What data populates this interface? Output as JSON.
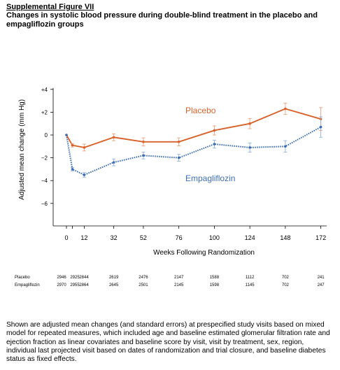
{
  "figure_label": "Supplemental Figure VII",
  "title": "Changes in systolic blood pressure during double-blind treatment in the placebo and empagliflozin groups",
  "colors": {
    "placebo": "#d9622b",
    "empagliflozin": "#3d6fb4",
    "axis": "#000000",
    "error_placebo": "#eba27d",
    "error_empa": "#8fb0dc"
  },
  "chart_data": {
    "type": "line",
    "xlabel": "Weeks Following Randomization",
    "ylabel": "Adjusted mean change (mm Hg)",
    "x": [
      0,
      4,
      12,
      32,
      52,
      76,
      100,
      124,
      148,
      172
    ],
    "x_tick_labels": [
      "0",
      "12",
      "32",
      "52",
      "76",
      "100",
      "124",
      "148",
      "172"
    ],
    "x_tick_values": [
      0,
      12,
      32,
      52,
      76,
      100,
      124,
      148,
      172
    ],
    "y_tick_labels": [
      "+4",
      "+2",
      "0",
      "−2",
      "−4",
      "−6"
    ],
    "y_tick_values": [
      4,
      2,
      0,
      -2,
      -4,
      -6
    ],
    "ylim": [
      -8,
      4
    ],
    "xlim": [
      -4,
      176
    ],
    "series": [
      {
        "name": "Placebo",
        "key": "placebo",
        "style": "solid",
        "values": [
          0.0,
          -0.9,
          -1.1,
          -0.2,
          -0.6,
          -0.6,
          0.4,
          1.0,
          2.3,
          1.4
        ],
        "errors": [
          0.0,
          0.15,
          0.3,
          0.3,
          0.35,
          0.35,
          0.4,
          0.45,
          0.5,
          1.0
        ]
      },
      {
        "name": "Empagliflozin",
        "key": "empagliflozin",
        "style": "dotted",
        "values": [
          0.0,
          -3.0,
          -3.5,
          -2.4,
          -1.8,
          -2.0,
          -0.8,
          -1.1,
          -1.0,
          0.7
        ],
        "errors": [
          0.0,
          0.15,
          0.2,
          0.3,
          0.3,
          0.3,
          0.35,
          0.4,
          0.5,
          0.9
        ]
      }
    ],
    "number_at_risk": {
      "x": [
        0,
        4,
        12,
        32,
        52,
        76,
        100,
        124,
        148,
        172
      ],
      "rows": [
        {
          "label": "Placebo",
          "values": [
            "2946",
            "2925",
            "2844",
            "2619",
            "2476",
            "2147",
            "1588",
            "1112",
            "702",
            "241"
          ]
        },
        {
          "label": "Empagliflozin",
          "values": [
            "2970",
            "2955",
            "2864",
            "2645",
            "2501",
            "2145",
            "1598",
            "1145",
            "702",
            "247"
          ]
        }
      ]
    }
  },
  "caption": "Shown are adjusted mean changes (and standard errors) at prespecified study visits based on mixed model for repeated measures, which included age and baseline estimated glomerular filtration rate and ejection fraction as linear covariates and baseline score by visit, visit by treatment, sex, region, individual last projected visit based on dates of randomization and trial closure, and baseline diabetes status as fixed effects."
}
